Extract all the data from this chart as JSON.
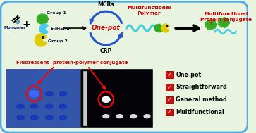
{
  "bg_color": "#e8f4e0",
  "border_color": "#55aadd",
  "title_text": "Fluorescent  protein-polymer conjugate",
  "title_color": "#cc0000",
  "mcrs_label": "MCRs",
  "crp_label": "CRP",
  "onepot_label": "One-pot",
  "multifunctional_polymer": "Multifunctional\nPolymer",
  "multifunctional_protein": "Multifunctional\nProtein conjugate",
  "monomer_label": "Monomer",
  "initiator_label": "Initiator",
  "group1_label": "Group 1",
  "group2_label": "Group 2",
  "checklist": [
    "One-pot",
    "Straightforward",
    "General method",
    "Multifunctional"
  ],
  "blue_arrow_color": "#2255cc",
  "polymer_color": "#44ccdd",
  "green_blob": "#33aa22",
  "yellow_pac": "#ddcc00"
}
